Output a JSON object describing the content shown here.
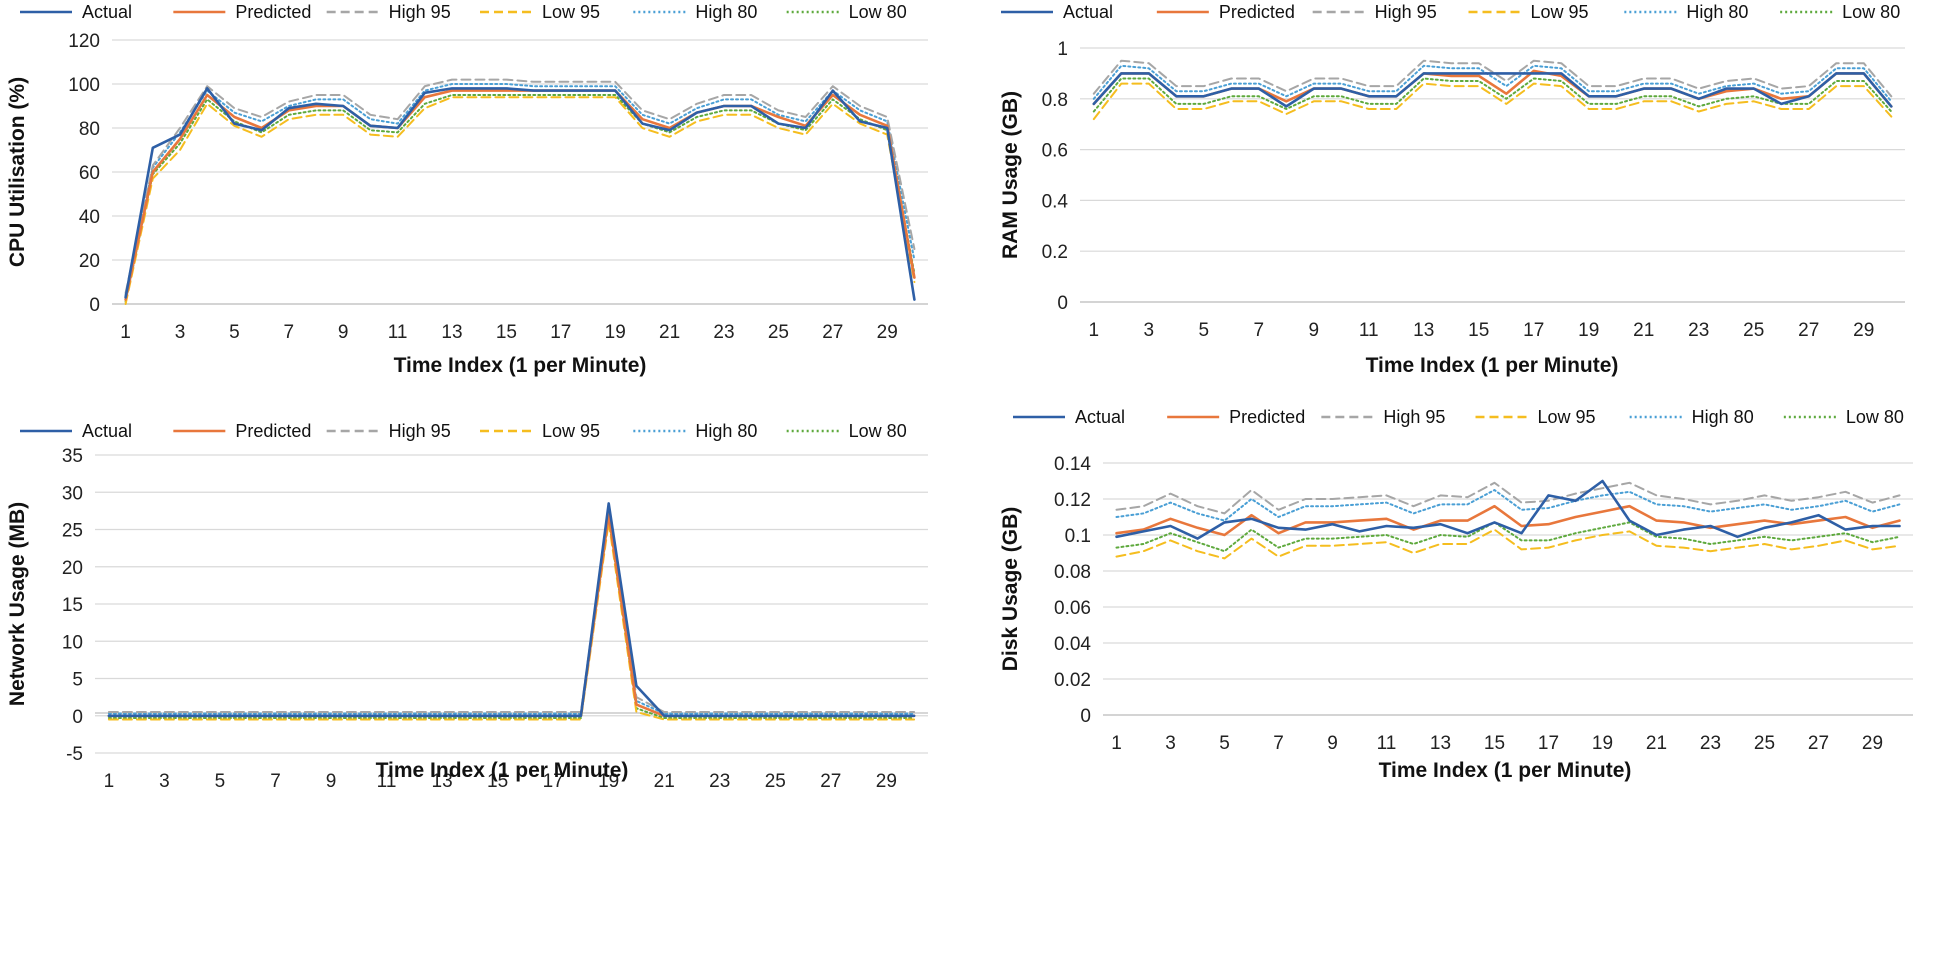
{
  "series_styles": [
    {
      "name": "Actual",
      "color": "#2e5fa6",
      "dash": "solid"
    },
    {
      "name": "Predicted",
      "color": "#e8773c",
      "dash": "solid"
    },
    {
      "name": "High 95",
      "color": "#a6a6a6",
      "dash": "dash"
    },
    {
      "name": "Low 95",
      "color": "#f5bd1f",
      "dash": "dash"
    },
    {
      "name": "High 80",
      "color": "#4a9fd5",
      "dash": "dot"
    },
    {
      "name": "Low 80",
      "color": "#5ea93d",
      "dash": "dot"
    }
  ],
  "chart_data": [
    {
      "id": "cpu",
      "type": "line",
      "ylabel": "CPU Utilisation (%)",
      "xlabel": "Time Index (1 per Minute)",
      "ylim": [
        0,
        120
      ],
      "yticks": [
        0,
        20,
        40,
        60,
        80,
        100,
        120
      ],
      "ytick_labels": [
        "0",
        "20",
        "40",
        "60",
        "80",
        "100",
        "120"
      ],
      "x_count": 30,
      "xtick_labels": [
        "1",
        "3",
        "5",
        "7",
        "9",
        "11",
        "13",
        "15",
        "17",
        "19",
        "21",
        "23",
        "25",
        "27",
        "29"
      ],
      "legend": [
        "Actual",
        "Predicted",
        "High 95",
        "Low 95",
        "High 80",
        "Low 80"
      ],
      "series": [
        {
          "name": "Actual",
          "values": [
            3,
            71,
            77,
            98,
            82,
            79,
            89,
            91,
            90,
            81,
            80,
            96,
            98,
            98,
            98,
            97,
            97,
            97,
            97,
            82,
            79,
            87,
            90,
            90,
            82,
            80,
            97,
            83,
            80,
            2
          ]
        },
        {
          "name": "Predicted",
          "values": [
            2,
            60,
            75,
            95,
            85,
            80,
            88,
            90,
            90,
            81,
            80,
            94,
            97,
            97,
            97,
            97,
            97,
            97,
            97,
            84,
            80,
            87,
            90,
            90,
            85,
            81,
            95,
            86,
            81,
            12
          ]
        },
        {
          "name": "High 95",
          "values": [
            5,
            63,
            80,
            99,
            89,
            85,
            92,
            95,
            95,
            86,
            84,
            99,
            102,
            102,
            102,
            101,
            101,
            101,
            101,
            88,
            84,
            91,
            95,
            95,
            88,
            85,
            99,
            90,
            85,
            25
          ]
        },
        {
          "name": "Low 95",
          "values": [
            0,
            57,
            70,
            91,
            81,
            76,
            84,
            86,
            86,
            77,
            76,
            89,
            94,
            94,
            94,
            94,
            94,
            94,
            94,
            80,
            76,
            83,
            86,
            86,
            80,
            77,
            91,
            82,
            77,
            10
          ]
        },
        {
          "name": "High 80",
          "values": [
            4,
            62,
            78,
            97,
            87,
            83,
            90,
            93,
            93,
            84,
            82,
            97,
            100,
            100,
            100,
            99,
            99,
            99,
            99,
            86,
            82,
            89,
            93,
            93,
            86,
            83,
            97,
            88,
            83,
            20
          ]
        },
        {
          "name": "Low 80",
          "values": [
            1,
            59,
            73,
            93,
            83,
            78,
            86,
            88,
            88,
            79,
            78,
            91,
            95,
            95,
            95,
            95,
            95,
            95,
            95,
            82,
            78,
            85,
            88,
            88,
            82,
            79,
            93,
            84,
            79,
            14
          ]
        }
      ]
    },
    {
      "id": "ram",
      "type": "line",
      "ylabel": "RAM Usage (GB)",
      "xlabel": "Time Index (1 per Minute)",
      "ylim": [
        0,
        1
      ],
      "yticks": [
        0,
        0.2,
        0.4,
        0.6,
        0.8,
        1
      ],
      "ytick_labels": [
        "0",
        "0.2",
        "0.4",
        "0.6",
        "0.8",
        "1"
      ],
      "x_count": 30,
      "xtick_labels": [
        "1",
        "3",
        "5",
        "7",
        "9",
        "11",
        "13",
        "15",
        "17",
        "19",
        "21",
        "23",
        "25",
        "27",
        "29"
      ],
      "legend": [
        "Actual",
        "Predicted",
        "High 95",
        "Low 95",
        "High 80",
        "Low 80"
      ],
      "series": [
        {
          "name": "Actual",
          "values": [
            0.78,
            0.9,
            0.9,
            0.81,
            0.81,
            0.84,
            0.84,
            0.77,
            0.84,
            0.84,
            0.81,
            0.81,
            0.9,
            0.9,
            0.9,
            0.9,
            0.9,
            0.9,
            0.81,
            0.81,
            0.84,
            0.84,
            0.8,
            0.84,
            0.84,
            0.78,
            0.81,
            0.9,
            0.9,
            0.77
          ]
        },
        {
          "name": "Predicted",
          "values": [
            0.78,
            0.9,
            0.9,
            0.81,
            0.81,
            0.84,
            0.84,
            0.79,
            0.84,
            0.84,
            0.81,
            0.81,
            0.9,
            0.89,
            0.89,
            0.82,
            0.91,
            0.89,
            0.81,
            0.81,
            0.84,
            0.84,
            0.8,
            0.83,
            0.84,
            0.8,
            0.81,
            0.9,
            0.9,
            0.77
          ]
        },
        {
          "name": "High 95",
          "values": [
            0.82,
            0.95,
            0.94,
            0.85,
            0.85,
            0.88,
            0.88,
            0.83,
            0.88,
            0.88,
            0.85,
            0.85,
            0.95,
            0.94,
            0.94,
            0.87,
            0.95,
            0.94,
            0.85,
            0.85,
            0.88,
            0.88,
            0.84,
            0.87,
            0.88,
            0.84,
            0.85,
            0.94,
            0.94,
            0.81
          ]
        },
        {
          "name": "Low 95",
          "values": [
            0.72,
            0.86,
            0.86,
            0.76,
            0.76,
            0.79,
            0.79,
            0.74,
            0.79,
            0.79,
            0.76,
            0.76,
            0.86,
            0.85,
            0.85,
            0.78,
            0.86,
            0.85,
            0.76,
            0.76,
            0.79,
            0.79,
            0.75,
            0.78,
            0.79,
            0.76,
            0.76,
            0.85,
            0.85,
            0.73
          ]
        },
        {
          "name": "High 80",
          "values": [
            0.8,
            0.93,
            0.92,
            0.83,
            0.83,
            0.86,
            0.86,
            0.81,
            0.86,
            0.86,
            0.83,
            0.83,
            0.93,
            0.92,
            0.92,
            0.85,
            0.93,
            0.92,
            0.83,
            0.83,
            0.86,
            0.86,
            0.82,
            0.85,
            0.86,
            0.82,
            0.83,
            0.92,
            0.92,
            0.79
          ]
        },
        {
          "name": "Low 80",
          "values": [
            0.75,
            0.88,
            0.88,
            0.78,
            0.78,
            0.81,
            0.81,
            0.76,
            0.81,
            0.81,
            0.78,
            0.78,
            0.88,
            0.87,
            0.87,
            0.8,
            0.88,
            0.87,
            0.78,
            0.78,
            0.81,
            0.81,
            0.77,
            0.8,
            0.81,
            0.78,
            0.78,
            0.87,
            0.87,
            0.75
          ]
        }
      ]
    },
    {
      "id": "network",
      "type": "line",
      "ylabel": "Network Usage (MB)",
      "xlabel": "Time Index (1 per Minute)",
      "ylim": [
        -5,
        35
      ],
      "yticks": [
        -5,
        0,
        5,
        10,
        15,
        20,
        25,
        30,
        35
      ],
      "ytick_labels": [
        "-5",
        "0",
        "5",
        "10",
        "15",
        "20",
        "25",
        "30",
        "35"
      ],
      "x_count": 30,
      "xtick_labels": [
        "1",
        "3",
        "5",
        "7",
        "9",
        "11",
        "13",
        "15",
        "17",
        "19",
        "21",
        "23",
        "25",
        "27",
        "29"
      ],
      "legend": [
        "Actual",
        "Predicted",
        "High 95",
        "Low 95",
        "High 80",
        "Low 80"
      ],
      "series": [
        {
          "name": "Actual",
          "values": [
            0,
            0,
            0,
            0,
            0,
            0,
            0,
            0,
            0,
            0,
            0,
            0,
            0,
            0,
            0,
            0,
            0,
            0,
            28.5,
            4,
            0,
            0,
            0,
            0,
            0,
            0,
            0,
            0,
            0,
            0
          ]
        },
        {
          "name": "Predicted",
          "values": [
            0,
            0,
            0,
            0,
            0,
            0,
            0,
            0,
            0,
            0,
            0,
            0,
            0,
            0,
            0,
            0,
            0,
            0,
            27,
            1.5,
            0,
            0,
            0,
            0,
            0,
            0,
            0,
            0,
            0,
            0
          ]
        },
        {
          "name": "High 95",
          "values": [
            0.5,
            0.5,
            0.5,
            0.5,
            0.5,
            0.5,
            0.5,
            0.5,
            0.5,
            0.5,
            0.5,
            0.5,
            0.5,
            0.5,
            0.5,
            0.5,
            0.5,
            0.5,
            28,
            2.5,
            0.5,
            0.5,
            0.5,
            0.5,
            0.5,
            0.5,
            0.5,
            0.5,
            0.5,
            0.5
          ]
        },
        {
          "name": "Low 95",
          "values": [
            -0.5,
            -0.5,
            -0.5,
            -0.5,
            -0.5,
            -0.5,
            -0.5,
            -0.5,
            -0.5,
            -0.5,
            -0.5,
            -0.5,
            -0.5,
            -0.5,
            -0.5,
            -0.5,
            -0.5,
            -0.5,
            26,
            0.5,
            -0.5,
            -0.5,
            -0.5,
            -0.5,
            -0.5,
            -0.5,
            -0.5,
            -0.5,
            -0.5,
            -0.5
          ]
        },
        {
          "name": "High 80",
          "values": [
            0.3,
            0.3,
            0.3,
            0.3,
            0.3,
            0.3,
            0.3,
            0.3,
            0.3,
            0.3,
            0.3,
            0.3,
            0.3,
            0.3,
            0.3,
            0.3,
            0.3,
            0.3,
            27.5,
            2,
            0.3,
            0.3,
            0.3,
            0.3,
            0.3,
            0.3,
            0.3,
            0.3,
            0.3,
            0.3
          ]
        },
        {
          "name": "Low 80",
          "values": [
            -0.3,
            -0.3,
            -0.3,
            -0.3,
            -0.3,
            -0.3,
            -0.3,
            -0.3,
            -0.3,
            -0.3,
            -0.3,
            -0.3,
            -0.3,
            -0.3,
            -0.3,
            -0.3,
            -0.3,
            -0.3,
            26.5,
            1,
            -0.3,
            -0.3,
            -0.3,
            -0.3,
            -0.3,
            -0.3,
            -0.3,
            -0.3,
            -0.3,
            -0.3
          ]
        }
      ]
    },
    {
      "id": "disk",
      "type": "line",
      "ylabel": "Disk Usage (GB)",
      "xlabel": "Time Index (1 per Minute)",
      "ylim": [
        0,
        0.14
      ],
      "yticks": [
        0,
        0.02,
        0.04,
        0.06,
        0.08,
        0.1,
        0.12,
        0.14
      ],
      "ytick_labels": [
        "0",
        "0.02",
        "0.04",
        "0.06",
        "0.08",
        "0.1",
        "0.12",
        "0.14"
      ],
      "x_count": 30,
      "xtick_labels": [
        "1",
        "3",
        "5",
        "7",
        "9",
        "11",
        "13",
        "15",
        "17",
        "19",
        "21",
        "23",
        "25",
        "27",
        "29"
      ],
      "legend": [
        "Actual",
        "Predicted",
        "High 95",
        "Low 95",
        "High 80",
        "Low 80"
      ],
      "series": [
        {
          "name": "Actual",
          "values": [
            0.099,
            0.102,
            0.105,
            0.098,
            0.107,
            0.109,
            0.104,
            0.103,
            0.106,
            0.102,
            0.105,
            0.104,
            0.106,
            0.101,
            0.107,
            0.101,
            0.122,
            0.119,
            0.13,
            0.108,
            0.1,
            0.103,
            0.105,
            0.099,
            0.104,
            0.107,
            0.111,
            0.103,
            0.105,
            0.105
          ]
        },
        {
          "name": "Predicted",
          "values": [
            0.101,
            0.103,
            0.109,
            0.104,
            0.1,
            0.111,
            0.101,
            0.107,
            0.107,
            0.108,
            0.109,
            0.103,
            0.108,
            0.108,
            0.116,
            0.105,
            0.106,
            0.11,
            0.113,
            0.116,
            0.108,
            0.107,
            0.104,
            0.106,
            0.108,
            0.106,
            0.108,
            0.11,
            0.104,
            0.108
          ]
        },
        {
          "name": "High 95",
          "values": [
            0.114,
            0.116,
            0.123,
            0.116,
            0.112,
            0.125,
            0.114,
            0.12,
            0.12,
            0.121,
            0.122,
            0.116,
            0.122,
            0.121,
            0.129,
            0.118,
            0.119,
            0.123,
            0.126,
            0.129,
            0.122,
            0.12,
            0.117,
            0.119,
            0.122,
            0.119,
            0.121,
            0.124,
            0.118,
            0.122
          ]
        },
        {
          "name": "Low 95",
          "values": [
            0.088,
            0.091,
            0.097,
            0.091,
            0.087,
            0.098,
            0.088,
            0.094,
            0.094,
            0.095,
            0.096,
            0.09,
            0.095,
            0.095,
            0.103,
            0.092,
            0.093,
            0.097,
            0.1,
            0.102,
            0.094,
            0.093,
            0.091,
            0.093,
            0.095,
            0.092,
            0.094,
            0.097,
            0.092,
            0.094
          ]
        },
        {
          "name": "High 80",
          "values": [
            0.11,
            0.112,
            0.118,
            0.112,
            0.108,
            0.12,
            0.11,
            0.116,
            0.116,
            0.117,
            0.118,
            0.112,
            0.117,
            0.117,
            0.125,
            0.114,
            0.115,
            0.119,
            0.122,
            0.124,
            0.117,
            0.116,
            0.113,
            0.115,
            0.117,
            0.114,
            0.116,
            0.119,
            0.113,
            0.117
          ]
        },
        {
          "name": "Low 80",
          "values": [
            0.093,
            0.095,
            0.101,
            0.096,
            0.091,
            0.103,
            0.093,
            0.098,
            0.098,
            0.099,
            0.1,
            0.095,
            0.1,
            0.099,
            0.107,
            0.097,
            0.097,
            0.101,
            0.104,
            0.107,
            0.099,
            0.098,
            0.095,
            0.097,
            0.099,
            0.097,
            0.099,
            0.101,
            0.096,
            0.099
          ]
        }
      ]
    }
  ]
}
